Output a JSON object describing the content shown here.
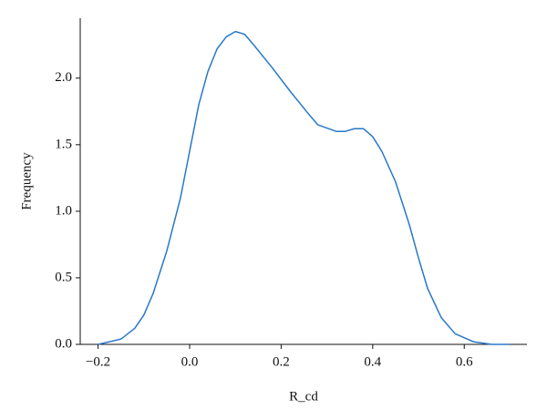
{
  "chart_data": {
    "type": "line",
    "xlabel": "R_cd",
    "ylabel": "Frequency",
    "x": [
      -0.2,
      -0.15,
      -0.12,
      -0.1,
      -0.08,
      -0.05,
      -0.02,
      0.0,
      0.02,
      0.04,
      0.06,
      0.08,
      0.1,
      0.12,
      0.14,
      0.18,
      0.22,
      0.26,
      0.28,
      0.32,
      0.34,
      0.36,
      0.38,
      0.4,
      0.42,
      0.45,
      0.48,
      0.5,
      0.52,
      0.55,
      0.58,
      0.62,
      0.66,
      0.7
    ],
    "series": [
      {
        "color": "#2878c8",
        "values": [
          0.0,
          0.04,
          0.12,
          0.22,
          0.38,
          0.7,
          1.1,
          1.45,
          1.8,
          2.05,
          2.22,
          2.31,
          2.35,
          2.33,
          2.25,
          2.08,
          1.9,
          1.73,
          1.65,
          1.6,
          1.6,
          1.62,
          1.62,
          1.56,
          1.45,
          1.22,
          0.9,
          0.65,
          0.42,
          0.2,
          0.08,
          0.02,
          0.0,
          0.0
        ]
      }
    ],
    "xlim": [
      -0.239,
      0.737
    ],
    "ylim": [
      0,
      2.45
    ],
    "xticks": [
      {
        "value": -0.2,
        "label": "−0.2"
      },
      {
        "value": 0,
        "label": "0.0"
      },
      {
        "value": 0.2,
        "label": "0.2"
      },
      {
        "value": 0.4,
        "label": "0.4"
      },
      {
        "value": 0.6,
        "label": "0.6"
      }
    ],
    "yticks": [
      {
        "value": 0,
        "label": "0.0"
      },
      {
        "value": 0.5,
        "label": "0.5"
      },
      {
        "value": 1,
        "label": "1.0"
      },
      {
        "value": 1.5,
        "label": "1.5"
      },
      {
        "value": 2,
        "label": "2.0"
      }
    ]
  }
}
